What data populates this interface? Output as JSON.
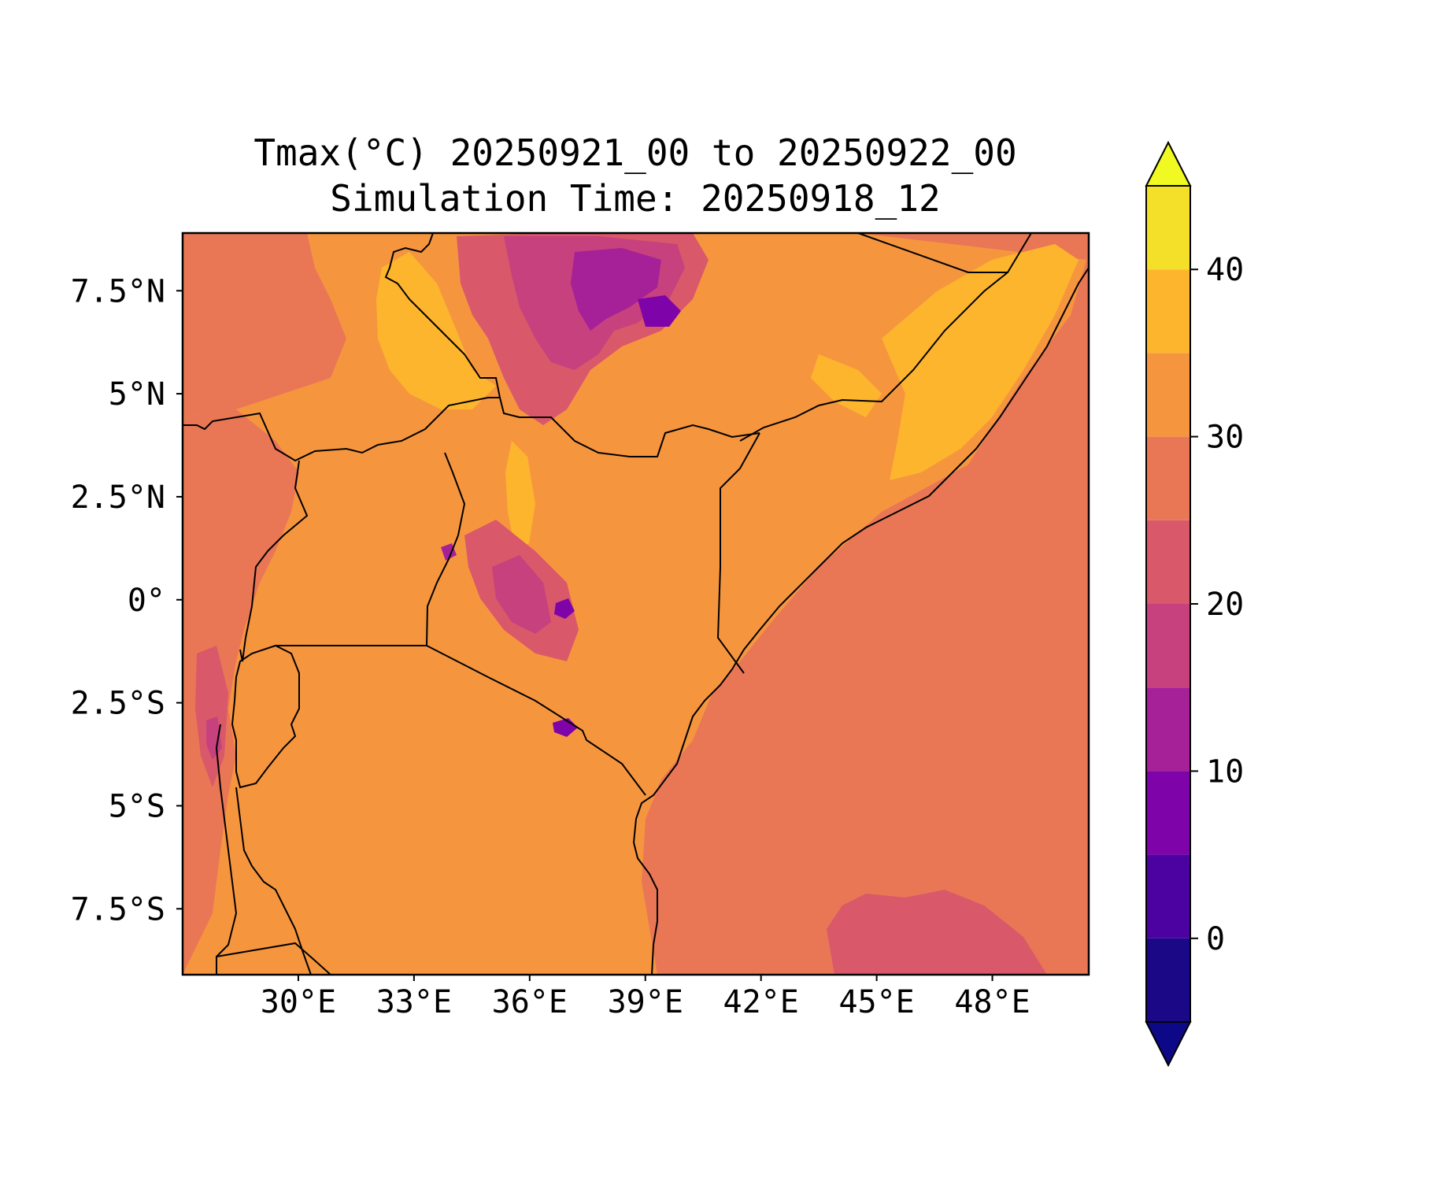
{
  "title": {
    "line1": "Tmax(°C) 20250921_00 to 20250922_00",
    "line2": "Simulation Time: 20250918_12"
  },
  "map": {
    "variable": "Tmax",
    "unit": "°C",
    "lon_range": [
      27.0,
      50.5
    ],
    "lat_range": [
      -9.1,
      8.9
    ],
    "x_ticks": [
      {
        "value": 30,
        "label": "30°E"
      },
      {
        "value": 33,
        "label": "33°E"
      },
      {
        "value": 36,
        "label": "36°E"
      },
      {
        "value": 39,
        "label": "39°E"
      },
      {
        "value": 42,
        "label": "42°E"
      },
      {
        "value": 45,
        "label": "45°E"
      },
      {
        "value": 48,
        "label": "48°E"
      }
    ],
    "y_ticks": [
      {
        "value": 7.5,
        "label": "7.5°N"
      },
      {
        "value": 5,
        "label": "5°N"
      },
      {
        "value": 2.5,
        "label": "2.5°N"
      },
      {
        "value": 0,
        "label": "0°"
      },
      {
        "value": -2.5,
        "label": "2.5°S"
      },
      {
        "value": -5,
        "label": "5°S"
      },
      {
        "value": -7.5,
        "label": "7.5°S"
      }
    ]
  },
  "colorbar": {
    "min": -5,
    "max": 45,
    "levels": [
      -5,
      0,
      5,
      10,
      15,
      20,
      25,
      30,
      35,
      40,
      45
    ],
    "colors": [
      "#1a0886",
      "#4c02a1",
      "#7e03a8",
      "#a62098",
      "#c6417d",
      "#d9586a",
      "#e97756",
      "#f5963f",
      "#fdb52e",
      "#f4e028"
    ],
    "under_color": "#0d0887",
    "over_color": "#f0f921",
    "ticks": [
      {
        "value": 0,
        "label": "0"
      },
      {
        "value": 10,
        "label": "10"
      },
      {
        "value": 20,
        "label": "20"
      },
      {
        "value": 30,
        "label": "30"
      },
      {
        "value": 40,
        "label": "40"
      }
    ]
  }
}
